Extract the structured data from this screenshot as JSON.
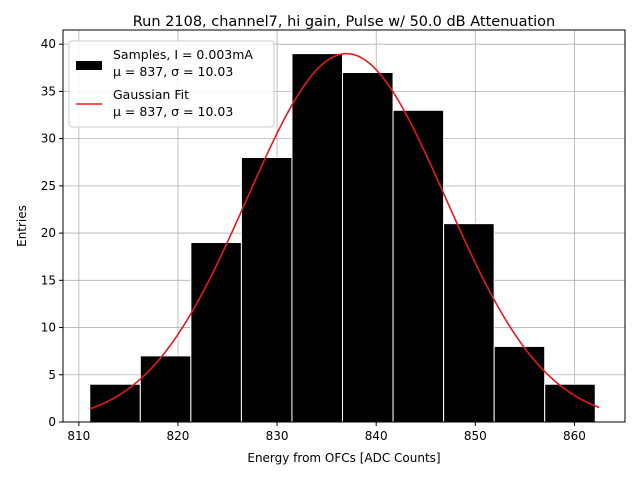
{
  "chart_data": {
    "type": "bar",
    "title": "Run 2108, channel7, hi gain, Pulse w/ 50.0 dB Attenuation",
    "xlabel": "Energy from OFCs [ADC Counts]",
    "ylabel": "Entries",
    "xlim": [
      808.4,
      865.1
    ],
    "ylim": [
      0,
      41.5
    ],
    "xticks": [
      810,
      820,
      830,
      840,
      850,
      860
    ],
    "yticks": [
      0,
      5,
      10,
      15,
      20,
      25,
      30,
      35,
      40
    ],
    "grid": true,
    "legend_position": "top-left",
    "bin_edges": [
      811.1,
      816.2,
      821.3,
      826.4,
      831.5,
      836.6,
      841.7,
      846.8,
      851.9,
      857.0,
      862.1
    ],
    "series": [
      {
        "name": "Samples",
        "legend_line1": "Samples, I = 0.003mA",
        "legend_line2": "μ = 837, σ = 10.03",
        "kind": "histogram",
        "color": "#000000",
        "edgecolor": "#ffffff",
        "values": [
          4,
          7,
          19,
          28,
          39,
          37,
          33,
          21,
          8,
          4
        ]
      },
      {
        "name": "Gaussian Fit",
        "legend_line1": "Gaussian Fit",
        "legend_line2": "μ = 837, σ = 10.03",
        "kind": "line",
        "color": "#e41a1c",
        "amplitude": 39,
        "mu": 837,
        "sigma": 10.03,
        "x_range": [
          811.1,
          862.5
        ]
      }
    ]
  }
}
